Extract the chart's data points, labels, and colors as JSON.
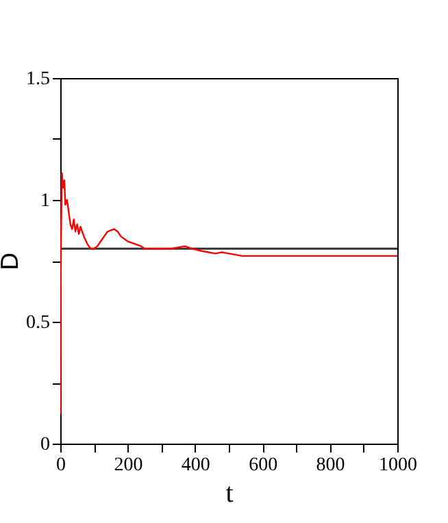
{
  "chart_data": {
    "type": "line",
    "xlabel": "t",
    "ylabel": "D",
    "x": [
      0,
      2,
      4,
      5,
      8,
      12,
      15,
      20,
      25,
      30,
      35,
      40,
      45,
      50,
      55,
      60,
      70,
      80,
      90,
      100,
      110,
      120,
      140,
      160,
      170,
      180,
      200,
      220,
      240,
      250,
      270,
      300,
      330,
      350,
      370,
      390,
      420,
      440,
      460,
      480,
      500,
      520,
      540,
      600,
      1000
    ],
    "series": [
      {
        "color": "#ff0000",
        "values": [
          0.12,
          0.8,
          1.05,
          1.11,
          1.05,
          1.08,
          0.98,
          1.0,
          0.95,
          0.9,
          0.88,
          0.92,
          0.87,
          0.9,
          0.86,
          0.89,
          0.85,
          0.82,
          0.8,
          0.8,
          0.81,
          0.83,
          0.87,
          0.88,
          0.87,
          0.85,
          0.83,
          0.82,
          0.81,
          0.8,
          0.8,
          0.8,
          0.8,
          0.805,
          0.81,
          0.8,
          0.79,
          0.785,
          0.78,
          0.785,
          0.78,
          0.775,
          0.77,
          0.77,
          0.77
        ]
      }
    ],
    "ref_lines": [
      {
        "axis": "y",
        "value": 0.8,
        "color": "#333333"
      }
    ],
    "xlim": [
      0,
      1000
    ],
    "ylim": [
      0,
      1.5
    ],
    "xticks": [
      0,
      {
        "value": 100,
        "label": null
      },
      200,
      {
        "value": 300,
        "label": null
      },
      400,
      {
        "value": 500,
        "label": null
      },
      600,
      {
        "value": 700,
        "label": null
      },
      800,
      {
        "value": 900,
        "label": null
      },
      1000
    ],
    "yticks": [
      0,
      {
        "value": 0.25,
        "label": null
      },
      0.5,
      {
        "value": 0.75,
        "label": null
      },
      1,
      {
        "value": 1.25,
        "label": null
      },
      1.5
    ],
    "grid": false
  }
}
